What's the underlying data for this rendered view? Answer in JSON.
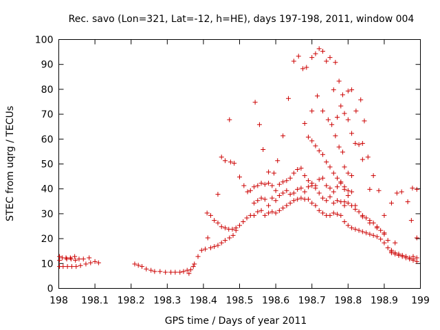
{
  "chart_data": {
    "type": "scatter",
    "title": "Rec. savo (Lon=321, Lat=-12, h=HE), days 197-198, 2011, window 004",
    "xlabel": "GPS time / Days of year 2011",
    "ylabel": "STEC from uqrg / TECUs",
    "xlim": [
      198,
      199
    ],
    "ylim": [
      0,
      100
    ],
    "x_ticks": [
      198,
      198.1,
      198.2,
      198.3,
      198.4,
      198.5,
      198.6,
      198.7,
      198.8,
      198.9,
      199
    ],
    "x_tick_labels": [
      "198",
      "198.1",
      "198.2",
      "198.3",
      "198.4",
      "198.5",
      "198.6",
      "198.7",
      "198.8",
      "198.9",
      "199"
    ],
    "y_ticks": [
      0,
      10,
      20,
      30,
      40,
      50,
      60,
      70,
      80,
      90,
      100
    ],
    "y_tick_labels": [
      "0",
      "10",
      "20",
      "30",
      "40",
      "50",
      "60",
      "70",
      "80",
      "90",
      "100"
    ],
    "grid": false,
    "marker": "+",
    "color": "#cc0000",
    "points": [
      [
        198.002,
        12.8
      ],
      [
        198.002,
        11.3
      ],
      [
        198.002,
        8.8
      ],
      [
        198.01,
        12.3
      ],
      [
        198.012,
        8.8
      ],
      [
        198.02,
        12.3
      ],
      [
        198.022,
        11.8
      ],
      [
        198.024,
        8.8
      ],
      [
        198.032,
        12.3
      ],
      [
        198.034,
        11.8
      ],
      [
        198.036,
        8.8
      ],
      [
        198.044,
        12.8
      ],
      [
        198.046,
        11.3
      ],
      [
        198.048,
        8.8
      ],
      [
        198.056,
        11.8
      ],
      [
        198.06,
        9.2
      ],
      [
        198.068,
        11.8
      ],
      [
        198.075,
        9.8
      ],
      [
        198.084,
        12.3
      ],
      [
        198.088,
        10.3
      ],
      [
        198.1,
        10.8
      ],
      [
        198.11,
        10.3
      ],
      [
        198.21,
        9.8
      ],
      [
        198.22,
        9.3
      ],
      [
        198.23,
        8.8
      ],
      [
        198.242,
        7.8
      ],
      [
        198.255,
        7.3
      ],
      [
        198.265,
        6.8
      ],
      [
        198.28,
        6.8
      ],
      [
        198.295,
        6.5
      ],
      [
        198.31,
        6.5
      ],
      [
        198.322,
        6.5
      ],
      [
        198.335,
        6.5
      ],
      [
        198.345,
        6.8
      ],
      [
        198.355,
        7.3
      ],
      [
        198.36,
        6.0
      ],
      [
        198.365,
        7.5
      ],
      [
        198.372,
        8.8
      ],
      [
        198.375,
        9.8
      ],
      [
        198.385,
        12.8
      ],
      [
        198.395,
        15.3
      ],
      [
        198.405,
        15.8
      ],
      [
        198.412,
        20.3
      ],
      [
        198.42,
        16.3
      ],
      [
        198.43,
        16.8
      ],
      [
        198.44,
        17.3
      ],
      [
        198.45,
        18.3
      ],
      [
        198.46,
        19.3
      ],
      [
        198.472,
        20.3
      ],
      [
        198.482,
        21.3
      ],
      [
        198.49,
        23.3
      ],
      [
        198.41,
        30.3
      ],
      [
        198.42,
        29.3
      ],
      [
        198.43,
        27.3
      ],
      [
        198.44,
        26.3
      ],
      [
        198.45,
        24.8
      ],
      [
        198.46,
        24.3
      ],
      [
        198.47,
        23.8
      ],
      [
        198.48,
        23.8
      ],
      [
        198.49,
        24.3
      ],
      [
        198.5,
        25.3
      ],
      [
        198.51,
        26.8
      ],
      [
        198.52,
        28.3
      ],
      [
        198.53,
        29.3
      ],
      [
        198.44,
        37.8
      ],
      [
        198.45,
        52.8
      ],
      [
        198.46,
        51.3
      ],
      [
        198.472,
        67.8
      ],
      [
        198.475,
        50.8
      ],
      [
        198.485,
        50.3
      ],
      [
        198.5,
        44.8
      ],
      [
        198.512,
        41.3
      ],
      [
        198.522,
        38.8
      ],
      [
        198.54,
        29.3
      ],
      [
        198.55,
        30.8
      ],
      [
        198.56,
        31.3
      ],
      [
        198.57,
        29.3
      ],
      [
        198.58,
        30.3
      ],
      [
        198.59,
        30.8
      ],
      [
        198.6,
        30.3
      ],
      [
        198.61,
        31.3
      ],
      [
        198.62,
        32.3
      ],
      [
        198.63,
        33.3
      ],
      [
        198.64,
        34.3
      ],
      [
        198.65,
        35.3
      ],
      [
        198.66,
        35.8
      ],
      [
        198.67,
        36.3
      ],
      [
        198.68,
        35.8
      ],
      [
        198.69,
        35.8
      ],
      [
        198.7,
        34.3
      ],
      [
        198.71,
        33.3
      ],
      [
        198.72,
        31.3
      ],
      [
        198.73,
        30.3
      ],
      [
        198.74,
        29.3
      ],
      [
        198.75,
        29.3
      ],
      [
        198.76,
        30.3
      ],
      [
        198.77,
        29.8
      ],
      [
        198.54,
        34.3
      ],
      [
        198.55,
        35.3
      ],
      [
        198.56,
        36.3
      ],
      [
        198.57,
        35.8
      ],
      [
        198.58,
        33.3
      ],
      [
        198.59,
        36.3
      ],
      [
        198.6,
        35.3
      ],
      [
        198.61,
        37.3
      ],
      [
        198.62,
        38.3
      ],
      [
        198.63,
        39.3
      ],
      [
        198.64,
        37.8
      ],
      [
        198.65,
        38.3
      ],
      [
        198.66,
        39.8
      ],
      [
        198.67,
        40.3
      ],
      [
        198.68,
        38.8
      ],
      [
        198.69,
        40.8
      ],
      [
        198.7,
        41.3
      ],
      [
        198.71,
        40.3
      ],
      [
        198.72,
        38.3
      ],
      [
        198.73,
        36.3
      ],
      [
        198.74,
        35.3
      ],
      [
        198.75,
        36.8
      ],
      [
        198.76,
        34.3
      ],
      [
        198.77,
        35.3
      ],
      [
        198.78,
        34.8
      ],
      [
        198.79,
        33.3
      ],
      [
        198.53,
        39.3
      ],
      [
        198.54,
        40.8
      ],
      [
        198.55,
        41.3
      ],
      [
        198.56,
        42.3
      ],
      [
        198.57,
        41.8
      ],
      [
        198.58,
        42.3
      ],
      [
        198.59,
        41.3
      ],
      [
        198.6,
        39.3
      ],
      [
        198.61,
        41.8
      ],
      [
        198.62,
        42.8
      ],
      [
        198.63,
        43.3
      ],
      [
        198.64,
        44.3
      ],
      [
        198.65,
        46.3
      ],
      [
        198.66,
        47.8
      ],
      [
        198.67,
        48.3
      ],
      [
        198.68,
        45.3
      ],
      [
        198.69,
        43.3
      ],
      [
        198.7,
        42.3
      ],
      [
        198.71,
        41.3
      ],
      [
        198.72,
        43.8
      ],
      [
        198.73,
        44.3
      ],
      [
        198.74,
        41.3
      ],
      [
        198.75,
        40.3
      ],
      [
        198.76,
        38.8
      ],
      [
        198.77,
        40.8
      ],
      [
        198.78,
        42.3
      ],
      [
        198.79,
        39.8
      ],
      [
        198.543,
        74.8
      ],
      [
        198.555,
        65.8
      ],
      [
        198.565,
        55.8
      ],
      [
        198.58,
        46.8
      ],
      [
        198.595,
        46.3
      ],
      [
        198.605,
        51.3
      ],
      [
        198.62,
        61.3
      ],
      [
        198.635,
        76.3
      ],
      [
        198.65,
        91.3
      ],
      [
        198.663,
        93.3
      ],
      [
        198.675,
        88.3
      ],
      [
        198.685,
        88.8
      ],
      [
        198.7,
        92.8
      ],
      [
        198.71,
        94.3
      ],
      [
        198.72,
        96.3
      ],
      [
        198.73,
        95.3
      ],
      [
        198.74,
        91.3
      ],
      [
        198.75,
        92.8
      ],
      [
        198.765,
        90.8
      ],
      [
        198.68,
        66.3
      ],
      [
        198.69,
        60.8
      ],
      [
        198.7,
        59.3
      ],
      [
        198.71,
        57.3
      ],
      [
        198.72,
        55.3
      ],
      [
        198.73,
        53.8
      ],
      [
        198.74,
        50.8
      ],
      [
        198.75,
        48.8
      ],
      [
        198.76,
        46.3
      ],
      [
        198.77,
        44.3
      ],
      [
        198.78,
        42.8
      ],
      [
        198.79,
        40.8
      ],
      [
        198.8,
        39.3
      ],
      [
        198.81,
        38.8
      ],
      [
        198.7,
        71.3
      ],
      [
        198.715,
        77.3
      ],
      [
        198.73,
        71.3
      ],
      [
        198.745,
        67.8
      ],
      [
        198.755,
        65.8
      ],
      [
        198.765,
        61.3
      ],
      [
        198.775,
        56.8
      ],
      [
        198.785,
        54.8
      ],
      [
        198.79,
        48.8
      ],
      [
        198.8,
        46.3
      ],
      [
        198.81,
        45.3
      ],
      [
        198.76,
        79.8
      ],
      [
        198.775,
        83.3
      ],
      [
        198.785,
        77.8
      ],
      [
        198.8,
        79.3
      ],
      [
        198.81,
        79.8
      ],
      [
        198.822,
        71.3
      ],
      [
        198.835,
        75.8
      ],
      [
        198.845,
        67.3
      ],
      [
        198.855,
        52.8
      ],
      [
        198.87,
        45.3
      ],
      [
        198.77,
        68.8
      ],
      [
        198.78,
        73.3
      ],
      [
        198.79,
        70.3
      ],
      [
        198.8,
        67.8
      ],
      [
        198.81,
        62.3
      ],
      [
        198.82,
        58.3
      ],
      [
        198.83,
        57.8
      ],
      [
        198.84,
        51.8
      ],
      [
        198.78,
        29.3
      ],
      [
        198.79,
        26.8
      ],
      [
        198.8,
        25.3
      ],
      [
        198.81,
        24.3
      ],
      [
        198.82,
        23.8
      ],
      [
        198.83,
        23.3
      ],
      [
        198.84,
        22.8
      ],
      [
        198.85,
        22.3
      ],
      [
        198.86,
        21.8
      ],
      [
        198.87,
        21.3
      ],
      [
        198.88,
        20.8
      ],
      [
        198.89,
        19.8
      ],
      [
        198.9,
        18.3
      ],
      [
        198.91,
        16.3
      ],
      [
        198.92,
        14.8
      ],
      [
        198.93,
        13.8
      ],
      [
        198.94,
        13.3
      ],
      [
        198.95,
        12.8
      ],
      [
        198.96,
        12.3
      ],
      [
        198.97,
        11.8
      ],
      [
        198.98,
        11.3
      ],
      [
        198.99,
        10.8
      ],
      [
        198.79,
        34.8
      ],
      [
        198.8,
        34.3
      ],
      [
        198.81,
        33.3
      ],
      [
        198.82,
        31.8
      ],
      [
        198.83,
        30.8
      ],
      [
        198.84,
        29.3
      ],
      [
        198.85,
        28.3
      ],
      [
        198.86,
        27.3
      ],
      [
        198.87,
        26.3
      ],
      [
        198.88,
        24.8
      ],
      [
        198.89,
        23.3
      ],
      [
        198.9,
        21.8
      ],
      [
        198.91,
        19.3
      ],
      [
        198.92,
        15.3
      ],
      [
        198.93,
        14.3
      ],
      [
        198.94,
        13.8
      ],
      [
        198.95,
        13.3
      ],
      [
        198.96,
        12.8
      ],
      [
        198.97,
        12.3
      ],
      [
        198.98,
        11.8
      ],
      [
        198.99,
        12.3
      ],
      [
        198.8,
        37.3
      ],
      [
        198.82,
        33.3
      ],
      [
        198.84,
        28.8
      ],
      [
        198.86,
        26.3
      ],
      [
        198.88,
        24.3
      ],
      [
        198.9,
        22.3
      ],
      [
        198.92,
        14.3
      ],
      [
        198.94,
        13.3
      ],
      [
        198.96,
        12.8
      ],
      [
        198.98,
        12.8
      ],
      [
        198.84,
        58.3
      ],
      [
        198.86,
        39.8
      ],
      [
        198.885,
        39.3
      ],
      [
        198.9,
        29.3
      ],
      [
        198.92,
        34.3
      ],
      [
        198.935,
        38.3
      ],
      [
        198.948,
        38.8
      ],
      [
        198.965,
        34.8
      ],
      [
        198.975,
        27.3
      ],
      [
        198.978,
        40.3
      ],
      [
        198.99,
        20.3
      ],
      [
        198.99,
        39.8
      ],
      [
        198.93,
        18.3
      ]
    ]
  }
}
